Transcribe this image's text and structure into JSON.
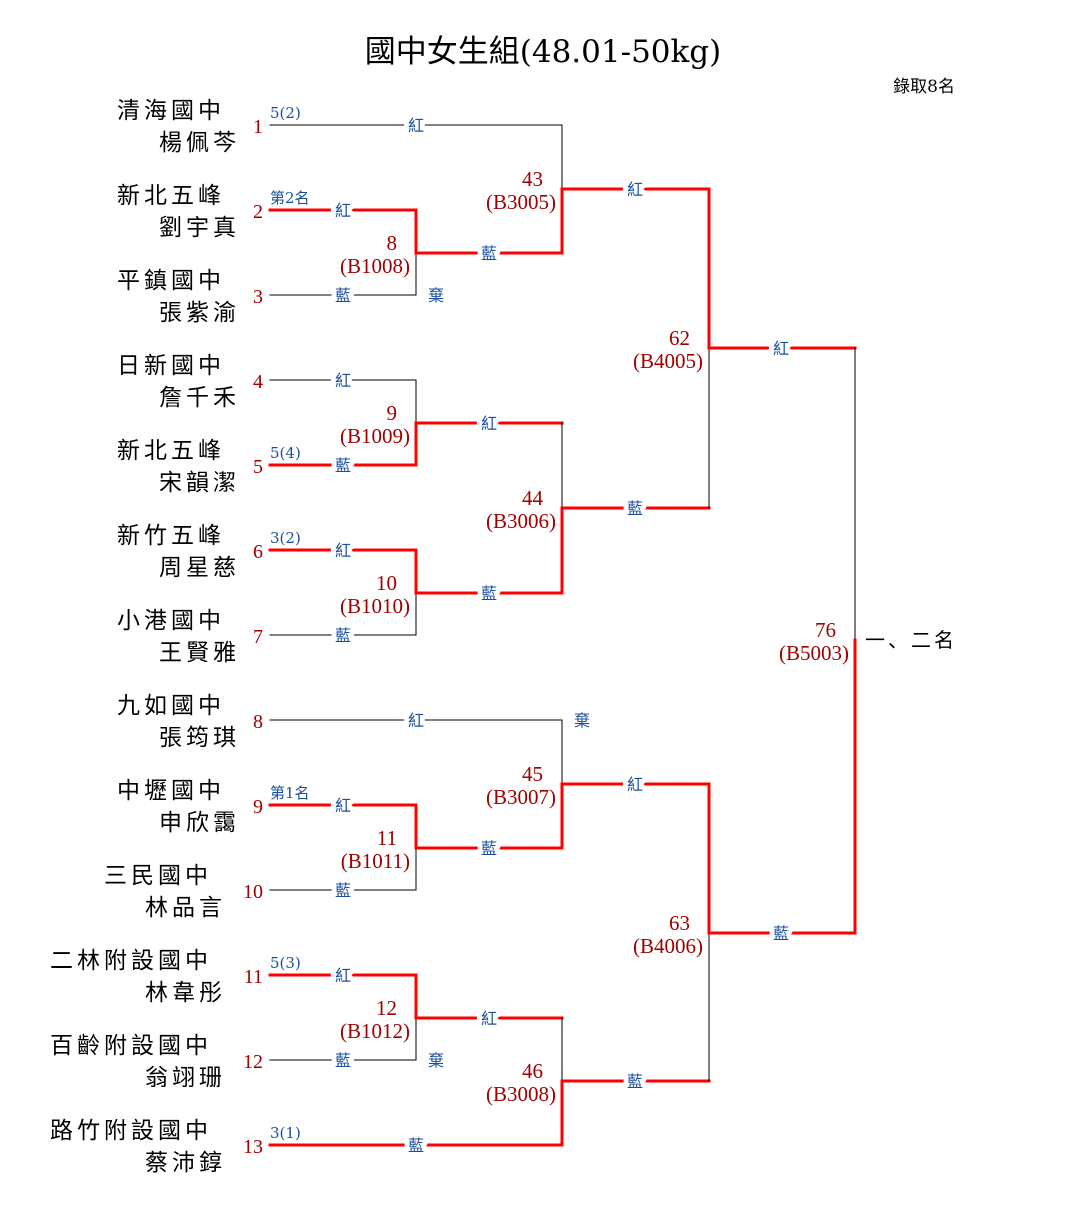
{
  "title": "國中女生組(48.01-50kg)",
  "quota": "錄取8名",
  "final_place": "一、二名",
  "labels": {
    "red": "紅",
    "blue": "藍",
    "forfeit": "棄"
  },
  "colors": {
    "winner_line": "#ff0000",
    "line": "#000000",
    "number": "#a00000",
    "corner_label": "#1a4fa0"
  },
  "entrants": [
    {
      "num": "1",
      "school": "清海國中",
      "name": "楊佩芩",
      "note": "5(2)"
    },
    {
      "num": "2",
      "school": "新北五峰",
      "name": "劉宇真",
      "note": "第2名"
    },
    {
      "num": "3",
      "school": "平鎮國中",
      "name": "張紫渝",
      "note": ""
    },
    {
      "num": "4",
      "school": "日新國中",
      "name": "詹千禾",
      "note": ""
    },
    {
      "num": "5",
      "school": "新北五峰",
      "name": "宋韻潔",
      "note": "5(4)"
    },
    {
      "num": "6",
      "school": "新竹五峰",
      "name": "周星慈",
      "note": "3(2)"
    },
    {
      "num": "7",
      "school": "小港國中",
      "name": "王賢雅",
      "note": ""
    },
    {
      "num": "8",
      "school": "九如國中",
      "name": "張筠琪",
      "note": ""
    },
    {
      "num": "9",
      "school": "中壢國中",
      "name": "申欣靄",
      "note": "第1名"
    },
    {
      "num": "10",
      "school": "三民國中",
      "name": "林品言",
      "note": ""
    },
    {
      "num": "11",
      "school": "二林附設國中",
      "name": "林韋彤",
      "note": "5(3)"
    },
    {
      "num": "12",
      "school": "百齡附設國中",
      "name": "翁翊珊",
      "note": ""
    },
    {
      "num": "13",
      "school": "路竹附設國中",
      "name": "蔡沛錞",
      "note": "3(1)"
    }
  ],
  "matches": [
    {
      "num": "8",
      "code": "(B1008)"
    },
    {
      "num": "9",
      "code": "(B1009)"
    },
    {
      "num": "10",
      "code": "(B1010)"
    },
    {
      "num": "11",
      "code": "(B1011)"
    },
    {
      "num": "12",
      "code": "(B1012)"
    },
    {
      "num": "43",
      "code": "(B3005)"
    },
    {
      "num": "44",
      "code": "(B3006)"
    },
    {
      "num": "45",
      "code": "(B3007)"
    },
    {
      "num": "46",
      "code": "(B3008)"
    },
    {
      "num": "62",
      "code": "(B4005)"
    },
    {
      "num": "63",
      "code": "(B4006)"
    },
    {
      "num": "76",
      "code": "(B5003)"
    }
  ]
}
